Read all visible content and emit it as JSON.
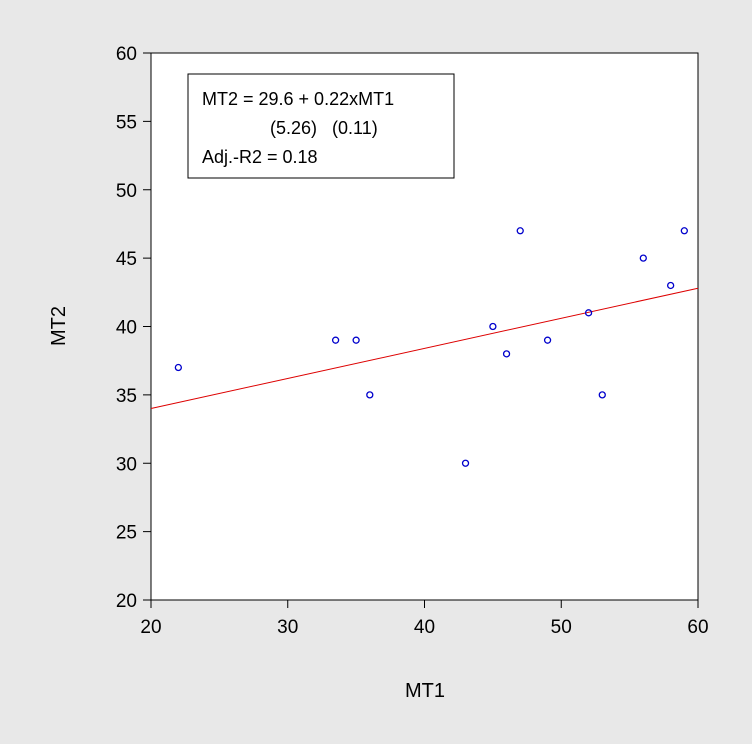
{
  "chart_data": {
    "type": "scatter",
    "xlabel": "MT1",
    "ylabel": "MT2",
    "xlim": [
      20,
      60
    ],
    "ylim": [
      20,
      60
    ],
    "xticks": [
      20,
      30,
      40,
      50,
      60
    ],
    "yticks": [
      20,
      25,
      30,
      35,
      40,
      45,
      50,
      55,
      60
    ],
    "grid": false,
    "points": [
      {
        "x": 22,
        "y": 37
      },
      {
        "x": 33.5,
        "y": 39
      },
      {
        "x": 35,
        "y": 39
      },
      {
        "x": 36,
        "y": 35
      },
      {
        "x": 43,
        "y": 30
      },
      {
        "x": 45,
        "y": 40
      },
      {
        "x": 46,
        "y": 38
      },
      {
        "x": 47,
        "y": 47
      },
      {
        "x": 49,
        "y": 39
      },
      {
        "x": 52,
        "y": 41
      },
      {
        "x": 53,
        "y": 35
      },
      {
        "x": 56,
        "y": 45
      },
      {
        "x": 58,
        "y": 43
      },
      {
        "x": 59,
        "y": 47
      }
    ],
    "regression_line": {
      "intercept": 29.6,
      "slope": 0.22
    },
    "annotation": {
      "equation": "MT2 = 29.6 + 0.22xMT1",
      "std_errors": "(5.26)   (0.11)",
      "adj_r2": "Adj.-R2 = 0.18"
    },
    "colors": {
      "background": "#e8e8e8",
      "plot_area": "#ffffff",
      "points": "#0000cc",
      "regression_line": "#dd0000"
    }
  }
}
